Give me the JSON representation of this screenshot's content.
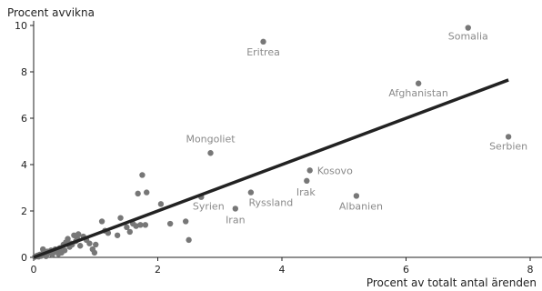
{
  "chart_data": {
    "type": "scatter",
    "xlabel": "Procent av totalt antal ärenden",
    "ylabel": "Procent avvikna",
    "xlim": [
      0,
      8.2
    ],
    "ylim": [
      0,
      10.2
    ],
    "x_ticks": [
      0,
      2,
      4,
      6,
      8
    ],
    "y_ticks": [
      0,
      2,
      4,
      6,
      8,
      10
    ],
    "grid": false,
    "colors": {
      "points": "#777777",
      "trend": "#222222",
      "labels": "#8a8a8a",
      "axes": "#222222"
    },
    "trend_line": {
      "from": [
        0,
        0
      ],
      "to": [
        7.65,
        7.65
      ]
    },
    "labeled_points": [
      {
        "label": "Somalia",
        "x": 7.0,
        "y": 9.9
      },
      {
        "label": "Eritrea",
        "x": 3.7,
        "y": 9.3
      },
      {
        "label": "Afghanistan",
        "x": 6.2,
        "y": 7.5
      },
      {
        "label": "Serbien",
        "x": 7.65,
        "y": 5.2
      },
      {
        "label": "Mongoliet",
        "x": 2.85,
        "y": 4.5
      },
      {
        "label": "Kosovo",
        "x": 4.45,
        "y": 3.75
      },
      {
        "label": "Irak",
        "x": 4.4,
        "y": 3.3
      },
      {
        "label": "Albanien",
        "x": 5.2,
        "y": 2.65
      },
      {
        "label": "Ryssland",
        "x": 3.5,
        "y": 2.8
      },
      {
        "label": "Syrien",
        "x": 2.7,
        "y": 2.6
      },
      {
        "label": "Iran",
        "x": 3.25,
        "y": 2.1
      }
    ],
    "points": [
      [
        0.02,
        0.02
      ],
      [
        0.04,
        0.05
      ],
      [
        0.06,
        0.08
      ],
      [
        0.08,
        0.03
      ],
      [
        0.1,
        0.12
      ],
      [
        0.12,
        0.06
      ],
      [
        0.14,
        0.15
      ],
      [
        0.16,
        0.1
      ],
      [
        0.18,
        0.2
      ],
      [
        0.2,
        0.05
      ],
      [
        0.22,
        0.25
      ],
      [
        0.25,
        0.18
      ],
      [
        0.28,
        0.3
      ],
      [
        0.3,
        0.12
      ],
      [
        0.32,
        0.22
      ],
      [
        0.35,
        0.35
      ],
      [
        0.38,
        0.28
      ],
      [
        0.4,
        0.15
      ],
      [
        0.42,
        0.4
      ],
      [
        0.45,
        0.2
      ],
      [
        0.48,
        0.55
      ],
      [
        0.5,
        0.3
      ],
      [
        0.52,
        0.65
      ],
      [
        0.55,
        0.8
      ],
      [
        0.58,
        0.45
      ],
      [
        0.6,
        0.6
      ],
      [
        0.62,
        0.55
      ],
      [
        0.65,
        0.95
      ],
      [
        0.68,
        0.7
      ],
      [
        0.7,
        0.85
      ],
      [
        0.72,
        1.0
      ],
      [
        0.75,
        0.5
      ],
      [
        0.8,
        0.9
      ],
      [
        0.85,
        0.75
      ],
      [
        0.9,
        0.6
      ],
      [
        0.95,
        0.35
      ],
      [
        0.98,
        0.2
      ],
      [
        1.0,
        0.55
      ],
      [
        1.1,
        1.55
      ],
      [
        1.15,
        1.15
      ],
      [
        1.2,
        1.05
      ],
      [
        1.35,
        0.95
      ],
      [
        1.4,
        1.7
      ],
      [
        1.5,
        1.3
      ],
      [
        1.55,
        1.1
      ],
      [
        1.6,
        1.45
      ],
      [
        1.65,
        1.35
      ],
      [
        1.68,
        2.75
      ],
      [
        1.72,
        1.4
      ],
      [
        1.75,
        3.55
      ],
      [
        1.8,
        1.4
      ],
      [
        1.82,
        2.8
      ],
      [
        2.05,
        2.3
      ],
      [
        2.2,
        1.45
      ],
      [
        2.45,
        1.55
      ],
      [
        2.5,
        0.75
      ],
      [
        0.15,
        0.35
      ]
    ]
  }
}
